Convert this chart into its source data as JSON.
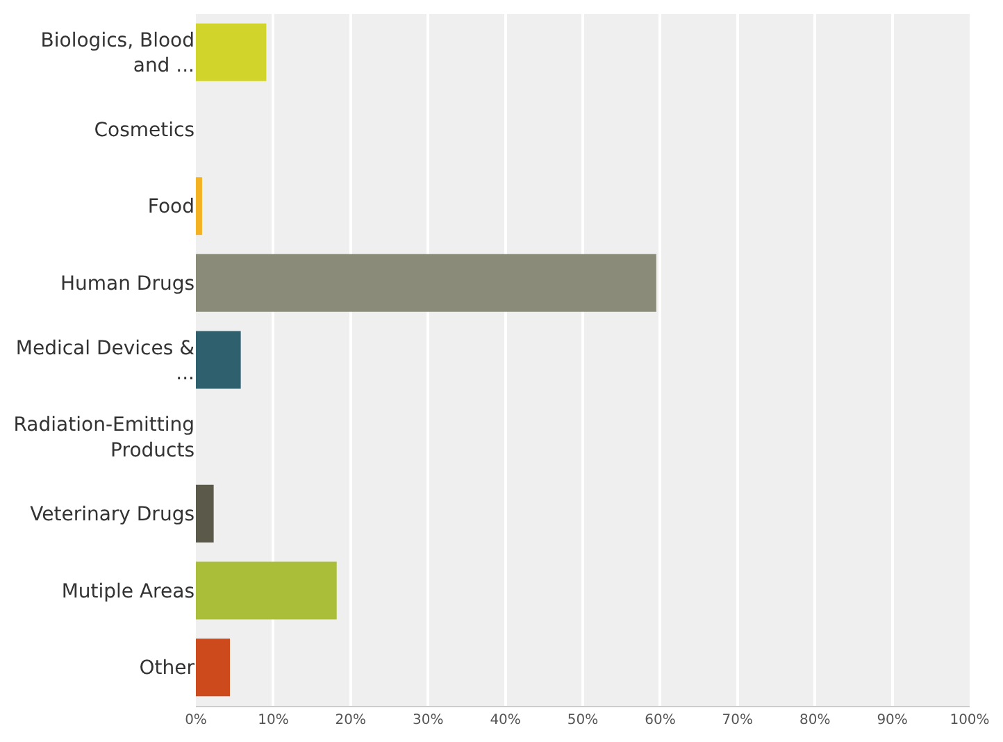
{
  "chart_data": {
    "type": "bar",
    "orientation": "horizontal",
    "categories": [
      "Biologics, Blood and ...",
      "Cosmetics",
      "Food",
      "Human Drugs",
      "Medical Devices & ...",
      "Radiation-Emitting Products",
      "Veterinary Drugs",
      "Mutiple Areas",
      "Other"
    ],
    "values": [
      9.1,
      0,
      0.8,
      59.5,
      5.8,
      0,
      2.3,
      18.2,
      4.4
    ],
    "colors": [
      "#d1d42a",
      "#cccccc",
      "#f4b223",
      "#8a8b79",
      "#2e616d",
      "#999999",
      "#5b5a4a",
      "#abbe3a",
      "#cc4a1c"
    ],
    "xlim": [
      0,
      100
    ],
    "xticks": [
      {
        "value": 0,
        "label": "0%"
      },
      {
        "value": 10,
        "label": "10%"
      },
      {
        "value": 20,
        "label": "20%"
      },
      {
        "value": 30,
        "label": "30%"
      },
      {
        "value": 40,
        "label": "40%"
      },
      {
        "value": 50,
        "label": "50%"
      },
      {
        "value": 60,
        "label": "60%"
      },
      {
        "value": 70,
        "label": "70%"
      },
      {
        "value": 80,
        "label": "80%"
      },
      {
        "value": 90,
        "label": "90%"
      },
      {
        "value": 100,
        "label": "100%"
      }
    ],
    "grid": "x"
  }
}
